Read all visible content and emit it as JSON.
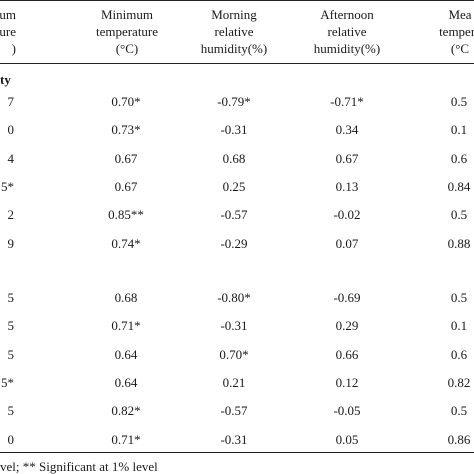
{
  "headers": {
    "col0": [
      "num",
      "ature",
      ")"
    ],
    "col1": [
      "Minimum",
      "temperature",
      "(°C)"
    ],
    "col2": [
      "Morning",
      "relative",
      "humidity(%)"
    ],
    "col3": [
      "Afternoon",
      "relative",
      "humidity(%)"
    ],
    "col4": [
      "Mea",
      "tempera",
      "(°C"
    ]
  },
  "section1_label": "ty",
  "section1_rows": [
    {
      "c0": "7",
      "c1": "0.70*",
      "c2": "-0.79*",
      "c3": "-0.71*",
      "c4": "0.5"
    },
    {
      "c0": "0",
      "c1": "0.73*",
      "c2": "-0.31",
      "c3": "0.34",
      "c4": "0.1"
    },
    {
      "c0": "4",
      "c1": "0.67",
      "c2": "0.68",
      "c3": "0.67",
      "c4": "0.6"
    },
    {
      "c0": "5*",
      "c1": "0.67",
      "c2": "0.25",
      "c3": "0.13",
      "c4": "0.84"
    },
    {
      "c0": "2",
      "c1": "0.85**",
      "c2": "-0.57",
      "c3": "-0.02",
      "c4": "0.5"
    },
    {
      "c0": "9",
      "c1": "0.74*",
      "c2": "-0.29",
      "c3": "0.07",
      "c4": "0.88"
    }
  ],
  "section2_rows": [
    {
      "c0": "5",
      "c1": "0.68",
      "c2": "-0.80*",
      "c3": "-0.69",
      "c4": "0.5"
    },
    {
      "c0": "5",
      "c1": "0.71*",
      "c2": "-0.31",
      "c3": "0.29",
      "c4": "0.1"
    },
    {
      "c0": "5",
      "c1": "0.64",
      "c2": "0.70*",
      "c3": "0.66",
      "c4": "0.6"
    },
    {
      "c0": "5*",
      "c1": "0.64",
      "c2": "0.21",
      "c3": "0.12",
      "c4": "0.82"
    },
    {
      "c0": "5",
      "c1": "0.82*",
      "c2": "-0.57",
      "c3": "-0.05",
      "c4": "0.5"
    },
    {
      "c0": "0",
      "c1": "0.71*",
      "c2": "-0.31",
      "c3": "0.05",
      "c4": "0.86"
    }
  ],
  "footnote": "vel; ** Significant at 1% level"
}
